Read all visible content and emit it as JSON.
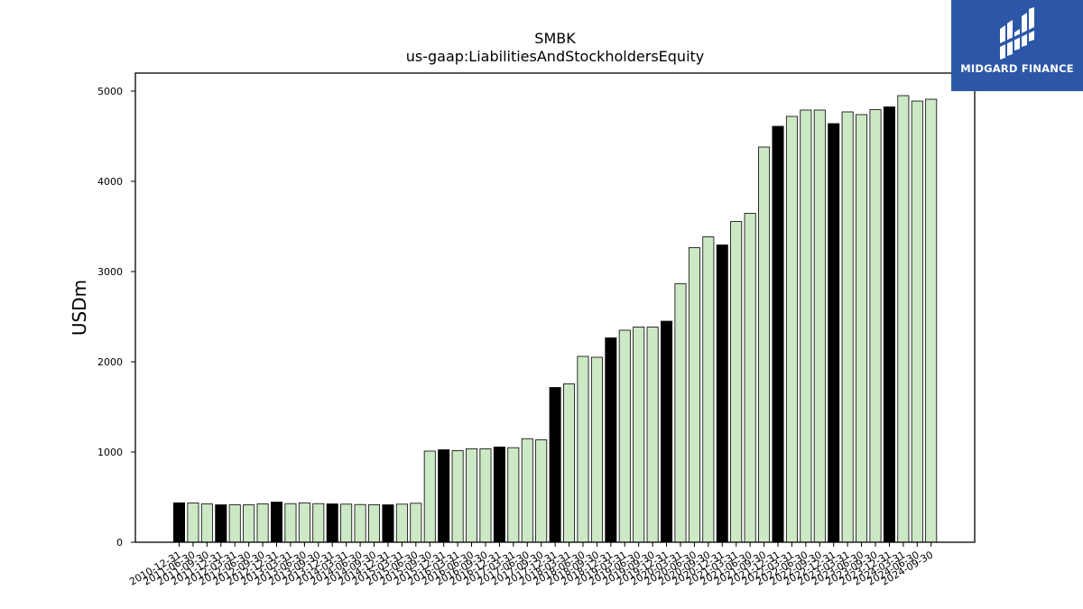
{
  "logo": {
    "text": "MIDGARD FINANCE",
    "icon": "midgard-logo-icon",
    "background": "#2c57a8"
  },
  "chart_data": {
    "type": "bar",
    "title": "SMBK",
    "subtitle": "us-gaap:LiabilitiesAndStockholdersEquity",
    "xlabel": "",
    "ylabel": "USDm",
    "ylim": [
      0,
      5200
    ],
    "yticks": [
      0,
      1000,
      2000,
      3000,
      4000,
      5000
    ],
    "grid": false,
    "colors": {
      "highlight": "#000000",
      "normal": "#cce8c4",
      "edge": "#000000"
    },
    "categories": [
      "2010-12-31",
      "2011-06-30",
      "2011-09-30",
      "2011-12-31",
      "2012-03-31",
      "2012-06-30",
      "2012-09-30",
      "2012-12-31",
      "2013-03-31",
      "2013-06-30",
      "2013-09-30",
      "2013-12-31",
      "2014-03-31",
      "2014-06-30",
      "2014-09-30",
      "2014-12-31",
      "2015-03-31",
      "2015-06-30",
      "2015-09-30",
      "2015-12-31",
      "2016-03-31",
      "2016-06-30",
      "2016-09-30",
      "2016-12-31",
      "2017-03-31",
      "2017-06-30",
      "2017-09-30",
      "2017-12-31",
      "2018-03-31",
      "2018-06-30",
      "2018-09-30",
      "2018-12-31",
      "2019-03-31",
      "2019-06-30",
      "2019-09-30",
      "2019-12-31",
      "2020-03-31",
      "2020-06-30",
      "2020-09-30",
      "2020-12-31",
      "2021-03-31",
      "2021-06-30",
      "2021-09-30",
      "2021-12-31",
      "2022-03-31",
      "2022-06-30",
      "2022-09-30",
      "2022-12-31",
      "2023-03-31",
      "2023-06-30",
      "2023-09-30",
      "2023-12-31",
      "2024-03-31",
      "2024-06-30",
      "2024-09-30"
    ],
    "values": [
      437,
      435,
      425,
      415,
      415,
      415,
      425,
      445,
      428,
      437,
      428,
      425,
      422,
      418,
      415,
      415,
      422,
      432,
      1010,
      1025,
      1015,
      1035,
      1035,
      1055,
      1048,
      1148,
      1135,
      1715,
      1755,
      2060,
      2050,
      2265,
      2350,
      2385,
      2385,
      2450,
      2865,
      3265,
      3385,
      3295,
      3555,
      3645,
      4380,
      4610,
      4720,
      4790,
      4790,
      4640,
      4770,
      4740,
      4795,
      4825,
      4950,
      4890,
      4910
    ],
    "highlight": [
      true,
      false,
      false,
      true,
      false,
      false,
      false,
      true,
      false,
      false,
      false,
      true,
      false,
      false,
      false,
      true,
      false,
      false,
      false,
      true,
      false,
      false,
      false,
      true,
      false,
      false,
      false,
      true,
      false,
      false,
      false,
      true,
      false,
      false,
      false,
      true,
      false,
      false,
      false,
      true,
      false,
      false,
      false,
      true,
      false,
      false,
      false,
      true,
      false,
      false,
      false,
      true,
      false,
      false,
      false
    ]
  }
}
